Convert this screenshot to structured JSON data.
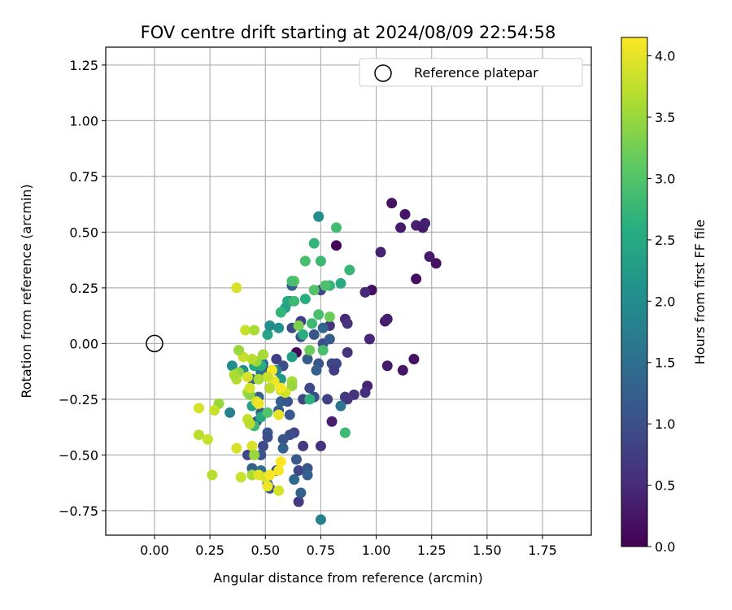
{
  "chart_data": {
    "type": "scatter",
    "title": "FOV centre drift starting at 2024/08/09 22:54:58",
    "xlabel": "Angular distance from reference (arcmin)",
    "ylabel": "Rotation from reference (arcmin)",
    "xlim": [
      -0.22,
      1.97
    ],
    "ylim": [
      -0.86,
      1.33
    ],
    "xticks": [
      0.0,
      0.25,
      0.5,
      0.75,
      1.0,
      1.25,
      1.5,
      1.75
    ],
    "xtick_labels": [
      "0.00",
      "0.25",
      "0.50",
      "0.75",
      "1.00",
      "1.25",
      "1.50",
      "1.75"
    ],
    "yticks": [
      -0.75,
      -0.5,
      -0.25,
      0.0,
      0.25,
      0.5,
      0.75,
      1.0,
      1.25
    ],
    "ytick_labels": [
      "−0.75",
      "−0.50",
      "−0.25",
      "0.00",
      "0.25",
      "0.50",
      "0.75",
      "1.00",
      "1.25"
    ],
    "grid": true,
    "colormap": "viridis",
    "colorbar": {
      "label": "Hours from first FF file",
      "range": [
        0.0,
        4.15
      ],
      "ticks": [
        0.0,
        0.5,
        1.0,
        1.5,
        2.0,
        2.5,
        3.0,
        3.5,
        4.0
      ],
      "tick_labels": [
        "0.0",
        "0.5",
        "1.0",
        "1.5",
        "2.0",
        "2.5",
        "3.0",
        "3.5",
        "4.0"
      ]
    },
    "legend": {
      "placement": "top-right",
      "entries": [
        {
          "label": "Reference platepar",
          "marker": "open-circle"
        }
      ]
    },
    "reference_point": {
      "x": 0.0,
      "y": 0.0
    },
    "points": [
      {
        "x": 1.07,
        "y": 0.63,
        "t": 0.2
      },
      {
        "x": 1.13,
        "y": 0.58,
        "t": 0.25
      },
      {
        "x": 1.11,
        "y": 0.52,
        "t": 0.3
      },
      {
        "x": 1.18,
        "y": 0.53,
        "t": 0.35
      },
      {
        "x": 1.21,
        "y": 0.52,
        "t": 0.3
      },
      {
        "x": 1.22,
        "y": 0.54,
        "t": 0.35
      },
      {
        "x": 1.24,
        "y": 0.39,
        "t": 0.3
      },
      {
        "x": 1.27,
        "y": 0.36,
        "t": 0.2
      },
      {
        "x": 1.18,
        "y": 0.29,
        "t": 0.15
      },
      {
        "x": 1.02,
        "y": 0.41,
        "t": 0.4
      },
      {
        "x": 0.82,
        "y": 0.44,
        "t": 0.05
      },
      {
        "x": 0.98,
        "y": 0.24,
        "t": 0.15
      },
      {
        "x": 0.95,
        "y": 0.23,
        "t": 0.5
      },
      {
        "x": 1.04,
        "y": 0.1,
        "t": 0.3
      },
      {
        "x": 1.05,
        "y": 0.11,
        "t": 0.35
      },
      {
        "x": 0.86,
        "y": 0.11,
        "t": 0.45
      },
      {
        "x": 0.87,
        "y": 0.09,
        "t": 0.6
      },
      {
        "x": 0.97,
        "y": 0.02,
        "t": 0.45
      },
      {
        "x": 0.87,
        "y": -0.04,
        "t": 0.6
      },
      {
        "x": 1.05,
        "y": -0.1,
        "t": 0.3
      },
      {
        "x": 1.12,
        "y": -0.12,
        "t": 0.25
      },
      {
        "x": 1.17,
        "y": -0.07,
        "t": 0.2
      },
      {
        "x": 0.96,
        "y": -0.19,
        "t": 0.4
      },
      {
        "x": 0.95,
        "y": -0.22,
        "t": 0.55
      },
      {
        "x": 0.9,
        "y": -0.23,
        "t": 0.6
      },
      {
        "x": 0.86,
        "y": -0.24,
        "t": 0.7
      },
      {
        "x": 0.87,
        "y": -0.25,
        "t": 0.65
      },
      {
        "x": 0.78,
        "y": -0.25,
        "t": 0.8
      },
      {
        "x": 0.8,
        "y": -0.35,
        "t": 0.35
      },
      {
        "x": 0.79,
        "y": 0.08,
        "t": 0.6
      },
      {
        "x": 0.76,
        "y": 0.0,
        "t": 1.0
      },
      {
        "x": 0.8,
        "y": -0.09,
        "t": 0.95
      },
      {
        "x": 0.82,
        "y": -0.09,
        "t": 0.9
      },
      {
        "x": 0.81,
        "y": -0.12,
        "t": 0.75
      },
      {
        "x": 0.74,
        "y": -0.09,
        "t": 1.1
      },
      {
        "x": 0.79,
        "y": 0.02,
        "t": 1.2
      },
      {
        "x": 0.76,
        "y": 0.07,
        "t": 1.35
      },
      {
        "x": 0.72,
        "y": 0.04,
        "t": 1.1
      },
      {
        "x": 0.66,
        "y": 0.03,
        "t": 1.0
      },
      {
        "x": 0.66,
        "y": 0.1,
        "t": 0.8
      },
      {
        "x": 0.62,
        "y": 0.07,
        "t": 0.95
      },
      {
        "x": 0.61,
        "y": 0.19,
        "t": 1.4
      },
      {
        "x": 0.62,
        "y": 0.26,
        "t": 1.2
      },
      {
        "x": 0.75,
        "y": 0.24,
        "t": 0.85
      },
      {
        "x": 0.64,
        "y": -0.04,
        "t": 0.05
      },
      {
        "x": 0.69,
        "y": -0.07,
        "t": 1.2
      },
      {
        "x": 0.73,
        "y": -0.12,
        "t": 1.25
      },
      {
        "x": 0.7,
        "y": -0.2,
        "t": 0.9
      },
      {
        "x": 0.67,
        "y": -0.25,
        "t": 0.9
      },
      {
        "x": 0.72,
        "y": -0.24,
        "t": 1.0
      },
      {
        "x": 0.67,
        "y": -0.46,
        "t": 0.7
      },
      {
        "x": 0.63,
        "y": -0.4,
        "t": 0.85
      },
      {
        "x": 0.61,
        "y": -0.41,
        "t": 1.0
      },
      {
        "x": 0.58,
        "y": -0.43,
        "t": 1.1
      },
      {
        "x": 0.56,
        "y": -0.3,
        "t": 1.2
      },
      {
        "x": 0.57,
        "y": -0.26,
        "t": 1.25
      },
      {
        "x": 0.6,
        "y": -0.26,
        "t": 1.1
      },
      {
        "x": 0.61,
        "y": -0.32,
        "t": 1.15
      },
      {
        "x": 0.52,
        "y": -0.2,
        "t": 0.95
      },
      {
        "x": 0.55,
        "y": -0.07,
        "t": 0.8
      },
      {
        "x": 0.58,
        "y": -0.1,
        "t": 1.0
      },
      {
        "x": 0.5,
        "y": -0.12,
        "t": 0.9
      },
      {
        "x": 0.49,
        "y": -0.05,
        "t": 1.05
      },
      {
        "x": 0.49,
        "y": -0.09,
        "t": 1.6
      },
      {
        "x": 0.48,
        "y": -0.13,
        "t": 1.5
      },
      {
        "x": 0.44,
        "y": -0.16,
        "t": 1.4
      },
      {
        "x": 0.47,
        "y": -0.24,
        "t": 1.3
      },
      {
        "x": 0.48,
        "y": -0.31,
        "t": 1.2
      },
      {
        "x": 0.46,
        "y": -0.35,
        "t": 1.15
      },
      {
        "x": 0.51,
        "y": -0.4,
        "t": 1.1
      },
      {
        "x": 0.51,
        "y": -0.42,
        "t": 1.0
      },
      {
        "x": 0.49,
        "y": -0.46,
        "t": 0.95
      },
      {
        "x": 0.48,
        "y": -0.5,
        "t": 1.05
      },
      {
        "x": 0.42,
        "y": -0.5,
        "t": 0.9
      },
      {
        "x": 0.44,
        "y": -0.56,
        "t": 1.3
      },
      {
        "x": 0.48,
        "y": -0.57,
        "t": 1.5
      },
      {
        "x": 0.51,
        "y": -0.63,
        "t": 1.25
      },
      {
        "x": 0.52,
        "y": -0.65,
        "t": 1.1
      },
      {
        "x": 0.55,
        "y": -0.57,
        "t": 1.0
      },
      {
        "x": 0.58,
        "y": -0.47,
        "t": 1.3
      },
      {
        "x": 0.63,
        "y": -0.61,
        "t": 1.4
      },
      {
        "x": 0.64,
        "y": -0.52,
        "t": 1.15
      },
      {
        "x": 0.65,
        "y": -0.57,
        "t": 0.9
      },
      {
        "x": 0.69,
        "y": -0.56,
        "t": 1.1
      },
      {
        "x": 0.69,
        "y": -0.59,
        "t": 1.25
      },
      {
        "x": 0.65,
        "y": -0.71,
        "t": 0.7
      },
      {
        "x": 0.66,
        "y": -0.67,
        "t": 1.3
      },
      {
        "x": 0.75,
        "y": -0.46,
        "t": 0.6
      },
      {
        "x": 0.75,
        "y": -0.79,
        "t": 1.8
      },
      {
        "x": 0.84,
        "y": -0.28,
        "t": 1.6
      },
      {
        "x": 0.86,
        "y": -0.4,
        "t": 2.8
      },
      {
        "x": 0.7,
        "y": -0.25,
        "t": 2.65
      },
      {
        "x": 0.72,
        "y": 0.45,
        "t": 2.7
      },
      {
        "x": 0.82,
        "y": 0.52,
        "t": 2.85
      },
      {
        "x": 0.74,
        "y": 0.57,
        "t": 2.0
      },
      {
        "x": 0.68,
        "y": 0.37,
        "t": 2.9
      },
      {
        "x": 0.75,
        "y": 0.37,
        "t": 2.8
      },
      {
        "x": 0.88,
        "y": 0.33,
        "t": 2.75
      },
      {
        "x": 0.84,
        "y": 0.27,
        "t": 2.5
      },
      {
        "x": 0.79,
        "y": 0.26,
        "t": 2.7
      },
      {
        "x": 0.77,
        "y": 0.26,
        "t": 2.95
      },
      {
        "x": 0.72,
        "y": 0.24,
        "t": 3.0
      },
      {
        "x": 0.68,
        "y": 0.2,
        "t": 2.6
      },
      {
        "x": 0.63,
        "y": 0.28,
        "t": 3.1
      },
      {
        "x": 0.62,
        "y": 0.28,
        "t": 2.9
      },
      {
        "x": 0.6,
        "y": 0.19,
        "t": 2.5
      },
      {
        "x": 0.63,
        "y": 0.19,
        "t": 2.8
      },
      {
        "x": 0.59,
        "y": 0.16,
        "t": 2.4
      },
      {
        "x": 0.57,
        "y": 0.14,
        "t": 2.7
      },
      {
        "x": 0.74,
        "y": 0.13,
        "t": 2.9
      },
      {
        "x": 0.79,
        "y": 0.12,
        "t": 3.2
      },
      {
        "x": 0.71,
        "y": 0.09,
        "t": 2.8
      },
      {
        "x": 0.65,
        "y": 0.08,
        "t": 3.3
      },
      {
        "x": 0.67,
        "y": 0.04,
        "t": 2.6
      },
      {
        "x": 0.56,
        "y": 0.07,
        "t": 2.1
      },
      {
        "x": 0.51,
        "y": 0.04,
        "t": 2.4
      },
      {
        "x": 0.52,
        "y": 0.08,
        "t": 2.0
      },
      {
        "x": 0.55,
        "y": -0.12,
        "t": 1.8
      },
      {
        "x": 0.48,
        "y": -0.1,
        "t": 2.6
      },
      {
        "x": 0.45,
        "y": -0.1,
        "t": 2.5
      },
      {
        "x": 0.62,
        "y": -0.06,
        "t": 2.3
      },
      {
        "x": 0.7,
        "y": -0.03,
        "t": 3.2
      },
      {
        "x": 0.76,
        "y": -0.03,
        "t": 2.9
      },
      {
        "x": 0.57,
        "y": -0.16,
        "t": 2.2
      },
      {
        "x": 0.35,
        "y": -0.1,
        "t": 2.0
      },
      {
        "x": 0.34,
        "y": -0.31,
        "t": 1.8
      },
      {
        "x": 0.4,
        "y": -0.12,
        "t": 2.1
      },
      {
        "x": 0.38,
        "y": -0.13,
        "t": 3.4
      },
      {
        "x": 0.44,
        "y": -0.28,
        "t": 2.4
      },
      {
        "x": 0.48,
        "y": -0.33,
        "t": 2.5
      },
      {
        "x": 0.45,
        "y": -0.37,
        "t": 2.8
      },
      {
        "x": 0.51,
        "y": -0.31,
        "t": 3.0
      },
      {
        "x": 0.62,
        "y": -0.17,
        "t": 3.6
      },
      {
        "x": 0.62,
        "y": -0.19,
        "t": 3.5
      },
      {
        "x": 0.59,
        "y": -0.22,
        "t": 3.9
      },
      {
        "x": 0.57,
        "y": -0.21,
        "t": 3.8
      },
      {
        "x": 0.54,
        "y": -0.17,
        "t": 4.05
      },
      {
        "x": 0.52,
        "y": -0.2,
        "t": 3.7
      },
      {
        "x": 0.53,
        "y": -0.12,
        "t": 4.1
      },
      {
        "x": 0.49,
        "y": -0.05,
        "t": 3.6
      },
      {
        "x": 0.46,
        "y": -0.08,
        "t": 3.5
      },
      {
        "x": 0.44,
        "y": -0.07,
        "t": 3.7
      },
      {
        "x": 0.42,
        "y": -0.15,
        "t": 3.9
      },
      {
        "x": 0.42,
        "y": -0.22,
        "t": 3.6
      },
      {
        "x": 0.43,
        "y": -0.23,
        "t": 3.4
      },
      {
        "x": 0.42,
        "y": -0.34,
        "t": 3.8
      },
      {
        "x": 0.43,
        "y": -0.36,
        "t": 3.7
      },
      {
        "x": 0.46,
        "y": -0.26,
        "t": 3.9
      },
      {
        "x": 0.47,
        "y": -0.27,
        "t": 4.05
      },
      {
        "x": 0.4,
        "y": -0.06,
        "t": 3.8
      },
      {
        "x": 0.38,
        "y": -0.03,
        "t": 3.5
      },
      {
        "x": 0.37,
        "y": -0.16,
        "t": 3.7
      },
      {
        "x": 0.36,
        "y": -0.14,
        "t": 3.6
      },
      {
        "x": 0.41,
        "y": 0.06,
        "t": 3.8
      },
      {
        "x": 0.45,
        "y": 0.06,
        "t": 3.6
      },
      {
        "x": 0.37,
        "y": 0.25,
        "t": 3.9
      },
      {
        "x": 0.29,
        "y": -0.27,
        "t": 3.5
      },
      {
        "x": 0.27,
        "y": -0.3,
        "t": 3.8
      },
      {
        "x": 0.2,
        "y": -0.29,
        "t": 3.9
      },
      {
        "x": 0.2,
        "y": -0.41,
        "t": 3.7
      },
      {
        "x": 0.24,
        "y": -0.43,
        "t": 3.8
      },
      {
        "x": 0.37,
        "y": -0.47,
        "t": 3.9
      },
      {
        "x": 0.26,
        "y": -0.59,
        "t": 3.7
      },
      {
        "x": 0.39,
        "y": -0.6,
        "t": 3.8
      },
      {
        "x": 0.44,
        "y": -0.59,
        "t": 3.6
      },
      {
        "x": 0.44,
        "y": -0.46,
        "t": 3.9
      },
      {
        "x": 0.45,
        "y": -0.5,
        "t": 3.5
      },
      {
        "x": 0.47,
        "y": -0.59,
        "t": 4.0
      },
      {
        "x": 0.5,
        "y": -0.6,
        "t": 3.9
      },
      {
        "x": 0.52,
        "y": -0.59,
        "t": 4.1
      },
      {
        "x": 0.51,
        "y": -0.64,
        "t": 4.05
      },
      {
        "x": 0.56,
        "y": -0.66,
        "t": 3.9
      },
      {
        "x": 0.56,
        "y": -0.57,
        "t": 4.1
      },
      {
        "x": 0.57,
        "y": -0.53,
        "t": 4.15
      },
      {
        "x": 0.56,
        "y": -0.32,
        "t": 4.0
      },
      {
        "x": 0.57,
        "y": -0.2,
        "t": 4.1
      },
      {
        "x": 0.43,
        "y": -0.2,
        "t": 3.9
      },
      {
        "x": 0.51,
        "y": -0.15,
        "t": 3.8
      },
      {
        "x": 0.47,
        "y": -0.16,
        "t": 3.6
      }
    ]
  }
}
